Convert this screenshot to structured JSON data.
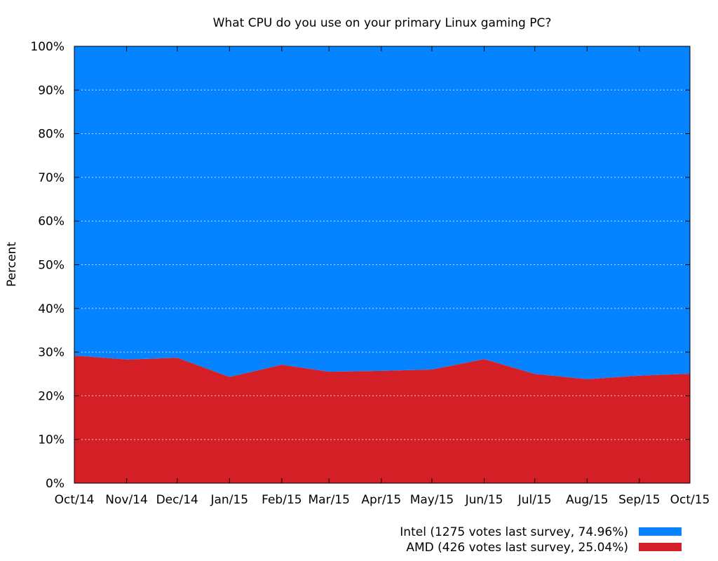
{
  "chart_data": {
    "type": "area",
    "stacked": true,
    "title": "What CPU do you use on your primary Linux gaming PC?",
    "xlabel": "",
    "ylabel": "Percent",
    "categories": [
      "Oct/14",
      "Nov/14",
      "Dec/14",
      "Jan/15",
      "Feb/15",
      "Mar/15",
      "Apr/15",
      "May/15",
      "Jun/15",
      "Jul/15",
      "Aug/15",
      "Sep/15",
      "Oct/15"
    ],
    "x_positions": [
      0,
      31,
      61,
      92,
      123,
      151,
      182,
      212,
      243,
      273,
      304,
      335,
      365
    ],
    "x_range": [
      0,
      365
    ],
    "ylim": [
      0,
      100
    ],
    "yticks": [
      "0%",
      "10%",
      "20%",
      "30%",
      "40%",
      "50%",
      "60%",
      "70%",
      "80%",
      "90%",
      "100%"
    ],
    "grid": true,
    "legend_position": "bottom-right",
    "series": [
      {
        "name": "AMD",
        "legend": "AMD (426 votes last survey, 25.04%)",
        "color": "#d41f26",
        "values": [
          29.2,
          28.3,
          28.7,
          24.3,
          27.1,
          25.5,
          25.7,
          26.0,
          28.4,
          25.0,
          23.8,
          24.6,
          25.04
        ]
      },
      {
        "name": "Intel",
        "legend": "Intel (1275 votes last survey, 74.96%)",
        "color": "#0683ff",
        "values": [
          70.8,
          71.7,
          71.3,
          75.7,
          72.9,
          74.5,
          74.3,
          74.0,
          71.6,
          75.0,
          76.2,
          75.4,
          74.96
        ]
      }
    ]
  }
}
